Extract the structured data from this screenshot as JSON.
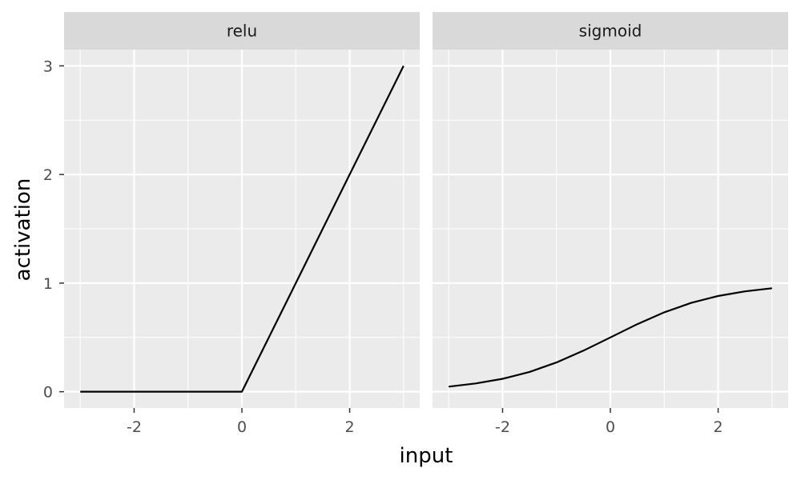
{
  "chart_data": {
    "type": "line",
    "xlabel": "input",
    "ylabel": "activation",
    "xlim": [
      -3.3,
      3.3
    ],
    "ylim": [
      -0.15,
      3.15
    ],
    "x_major_ticks": [
      -2,
      0,
      2
    ],
    "x_minor_ticks": [
      -3,
      -1,
      1,
      3
    ],
    "y_major_ticks": [
      0,
      1,
      2,
      3
    ],
    "y_minor_ticks": [
      0.5,
      1.5,
      2.5
    ],
    "grid": true,
    "legend": "none",
    "colors": {
      "panel_bg": "#ebebeb",
      "strip_bg": "#d9d9d9",
      "grid": "#ffffff",
      "line": "#000000",
      "tick": "#333333"
    },
    "facets": [
      {
        "label": "relu",
        "x": [
          -3,
          -2,
          -1,
          0,
          1,
          2,
          3
        ],
        "y": [
          0,
          0,
          0,
          0,
          1,
          2,
          3
        ]
      },
      {
        "label": "sigmoid",
        "x": [
          -3,
          -2.5,
          -2,
          -1.5,
          -1,
          -0.5,
          0,
          0.5,
          1,
          1.5,
          2,
          2.5,
          3
        ],
        "y": [
          0.047,
          0.076,
          0.119,
          0.182,
          0.269,
          0.378,
          0.5,
          0.622,
          0.731,
          0.818,
          0.881,
          0.924,
          0.953
        ]
      }
    ]
  }
}
